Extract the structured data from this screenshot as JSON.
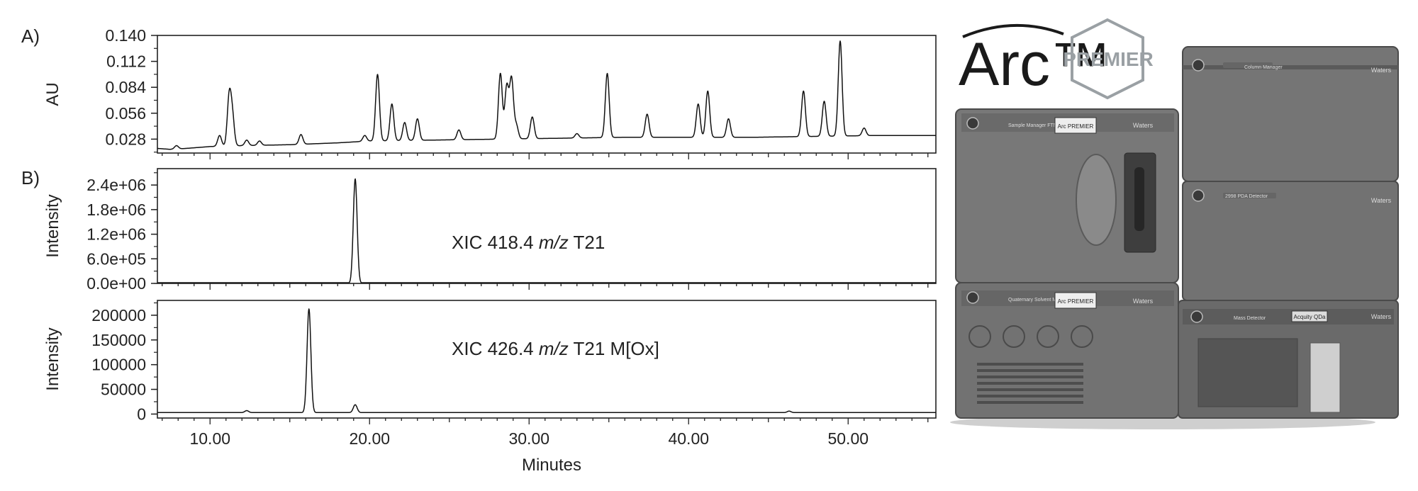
{
  "figure": {
    "panel_labels": [
      "A)",
      "B)"
    ],
    "x_axis_title": "Minutes"
  },
  "logo": {
    "brand": "Arc™",
    "edition": "PREMIER"
  },
  "instrument_labels": {
    "sample_manager": "Sample Manager FTN - R",
    "arc_badge": "Arc PREMIER",
    "column_manager": "Column Manager",
    "pda_detector": "2998 PDA Detector",
    "solvent_manager": "Quaternary Solvent Manager - R",
    "mass_detector": "Mass Detector",
    "acquity_qda": "Acquity QDa",
    "brand_waters": "Waters"
  },
  "colors": {
    "trace": "#111111",
    "instrument_body": "#6f6f6f",
    "instrument_dark": "#4a4a4a"
  },
  "chart_data": [
    {
      "type": "line",
      "panel": "A)",
      "title": "",
      "xlabel": "Minutes",
      "ylabel": "AU",
      "xlim": [
        6.7,
        55.5
      ],
      "ylim": [
        0.013,
        0.14
      ],
      "xticks": [
        "10.00",
        "20.00",
        "30.00",
        "40.00",
        "50.00"
      ],
      "yticks": [
        "0.140",
        "0.112",
        "0.084",
        "0.056",
        "0.028"
      ],
      "grid": false,
      "baseline": [
        [
          6.7,
          0.018
        ],
        [
          7.5,
          0.017
        ],
        [
          8.5,
          0.018
        ],
        [
          10.0,
          0.02
        ],
        [
          12.0,
          0.021
        ],
        [
          15.0,
          0.022
        ],
        [
          18.0,
          0.024
        ],
        [
          20.0,
          0.026
        ],
        [
          24.0,
          0.027
        ],
        [
          28.0,
          0.028
        ],
        [
          32.0,
          0.029
        ],
        [
          36.0,
          0.03
        ],
        [
          40.0,
          0.03
        ],
        [
          44.0,
          0.03
        ],
        [
          48.0,
          0.031
        ],
        [
          52.0,
          0.032
        ],
        [
          55.5,
          0.032
        ]
      ],
      "peaks": [
        {
          "x": 7.9,
          "y": 0.021
        },
        {
          "x": 10.6,
          "y": 0.032
        },
        {
          "x": 11.2,
          "y": 0.073
        },
        {
          "x": 11.4,
          "y": 0.052
        },
        {
          "x": 12.3,
          "y": 0.027
        },
        {
          "x": 13.1,
          "y": 0.026
        },
        {
          "x": 15.7,
          "y": 0.033
        },
        {
          "x": 19.7,
          "y": 0.032
        },
        {
          "x": 20.5,
          "y": 0.098
        },
        {
          "x": 21.4,
          "y": 0.066
        },
        {
          "x": 22.2,
          "y": 0.046
        },
        {
          "x": 23.0,
          "y": 0.05
        },
        {
          "x": 25.6,
          "y": 0.038
        },
        {
          "x": 28.2,
          "y": 0.099
        },
        {
          "x": 28.6,
          "y": 0.085
        },
        {
          "x": 28.9,
          "y": 0.093
        },
        {
          "x": 29.2,
          "y": 0.043
        },
        {
          "x": 30.2,
          "y": 0.052
        },
        {
          "x": 33.0,
          "y": 0.034
        },
        {
          "x": 34.9,
          "y": 0.099
        },
        {
          "x": 37.4,
          "y": 0.055
        },
        {
          "x": 40.6,
          "y": 0.066
        },
        {
          "x": 41.2,
          "y": 0.08
        },
        {
          "x": 42.5,
          "y": 0.05
        },
        {
          "x": 47.2,
          "y": 0.08
        },
        {
          "x": 48.5,
          "y": 0.069
        },
        {
          "x": 49.5,
          "y": 0.134
        },
        {
          "x": 51.0,
          "y": 0.04
        }
      ]
    },
    {
      "type": "line",
      "panel": "B)",
      "title": "",
      "annotation": "XIC 418.4 m/z T21",
      "xlabel": "Minutes",
      "ylabel": "Intensity",
      "xlim": [
        6.7,
        55.5
      ],
      "ylim": [
        0,
        2800000
      ],
      "xticks": [
        "10.00",
        "20.00",
        "30.00",
        "40.00",
        "50.00"
      ],
      "yticks": [
        "2.4e+06",
        "1.8e+06",
        "1.2e+06",
        "6.0e+05",
        "0.0e+00"
      ],
      "grid": false,
      "baseline": [
        [
          6.7,
          0
        ],
        [
          18.9,
          0
        ],
        [
          55.5,
          0
        ]
      ],
      "peaks": [
        {
          "x": 19.1,
          "y": 2550000
        }
      ]
    },
    {
      "type": "line",
      "panel": "B)",
      "title": "",
      "annotation": "XIC 426.4 m/z T21 M[Ox]",
      "xlabel": "Minutes",
      "ylabel": "Intensity",
      "xlim": [
        6.7,
        55.5
      ],
      "ylim": [
        -8000,
        230000
      ],
      "xticks": [
        "10.00",
        "20.00",
        "30.00",
        "40.00",
        "50.00"
      ],
      "yticks": [
        "200000",
        "150000",
        "100000",
        "50000",
        "0"
      ],
      "grid": false,
      "baseline": [
        [
          6.7,
          3000
        ],
        [
          55.5,
          3000
        ]
      ],
      "peaks": [
        {
          "x": 16.2,
          "y": 213000
        },
        {
          "x": 12.3,
          "y": 7000
        },
        {
          "x": 19.1,
          "y": 19000
        },
        {
          "x": 46.3,
          "y": 6000
        }
      ]
    }
  ]
}
